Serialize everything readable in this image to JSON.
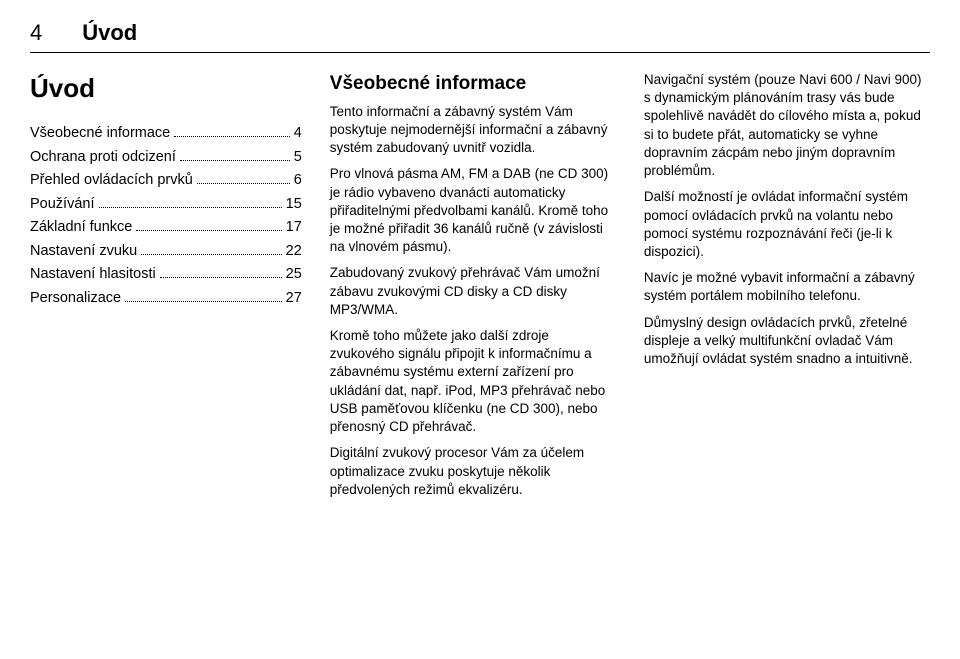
{
  "header": {
    "page_number": "4",
    "title": "Úvod"
  },
  "left": {
    "chapter_title": "Úvod",
    "toc": [
      {
        "label": "Všeobecné informace",
        "page": "4"
      },
      {
        "label": "Ochrana proti odcizení",
        "page": "5"
      },
      {
        "label": "Přehled ovládacích prvků",
        "page": "6"
      },
      {
        "label": "Používání",
        "page": "15"
      },
      {
        "label": "Základní funkce",
        "page": "17"
      },
      {
        "label": "Nastavení zvuku",
        "page": "22"
      },
      {
        "label": "Nastavení hlasitosti",
        "page": "25"
      },
      {
        "label": "Personalizace",
        "page": "27"
      }
    ]
  },
  "middle": {
    "heading": "Všeobecné informace",
    "p1": "Tento informační a zábavný systém Vám poskytuje nejmodernější informační a zábavný systém zabudovaný uvnitř vozidla.",
    "p2": "Pro vlnová pásma AM, FM a DAB (ne CD 300) je rádio vybaveno dvanácti automaticky přiřaditelnými předvolbami kanálů. Kromě toho je možné přiřadit 36 kanálů ručně (v závislosti na vlnovém pásmu).",
    "p3": "Zabudovaný zvukový přehrávač Vám umožní zábavu zvukovými CD disky a CD disky MP3/WMA.",
    "p4": "Kromě toho můžete jako další zdroje zvukového signálu připojit k informačnímu a zábavnému systému externí zařízení pro ukládání dat, např. iPod, MP3 přehrávač nebo USB paměťovou klíčenku (ne CD 300), nebo přenosný CD přehrávač.",
    "p5": "Digitální zvukový procesor Vám za účelem optimalizace zvuku poskytuje několik předvolených režimů ekvalizéru."
  },
  "right": {
    "p1": "Navigační systém (pouze Navi 600 / Navi 900) s dynamickým plánováním trasy vás bude spolehlivě navádět do cílového místa a, pokud si to budete přát, automaticky se vyhne dopravním zácpám nebo jiným dopravním problémům.",
    "p2": "Další možností je ovládat informační systém pomocí ovládacích prvků na volantu nebo pomocí systému rozpoznávání řeči (je-li k dispozici).",
    "p3": "Navíc je možné vybavit informační a zábavný systém portálem mobilního telefonu.",
    "p4": "Důmyslný design ovládacích prvků, zřetelné displeje a velký multifunkční ovladač Vám umožňují ovládat systém snadno a intuitivně."
  }
}
